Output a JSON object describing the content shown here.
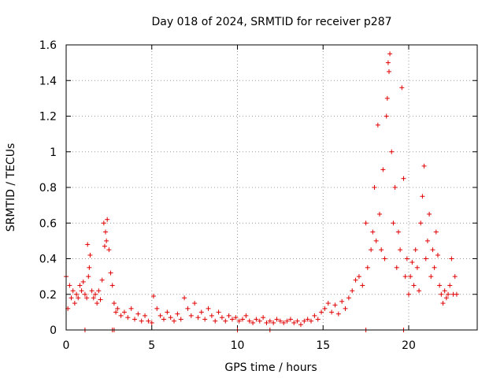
{
  "chart_data": {
    "type": "scatter",
    "title": "Day 018 of 2024, SRMTID for receiver p287",
    "xlabel": "GPS time / hours",
    "ylabel": "SRMTID / TECUs",
    "xlim": [
      0,
      24
    ],
    "ylim": [
      0,
      1.6
    ],
    "xticks": [
      0,
      5,
      10,
      15,
      20
    ],
    "yticks": [
      0,
      0.2,
      0.4,
      0.6,
      0.8,
      1,
      1.2,
      1.4,
      1.6
    ],
    "ytick_labels": [
      "0",
      "0.2",
      "0.4",
      "0.6",
      "0.8",
      "1",
      "1.2",
      "1.4",
      "1.6"
    ],
    "grid": true,
    "marker": "+",
    "series": [
      {
        "name": "SRMTID",
        "color": "#e00000",
        "x": [
          0.0,
          0.1,
          0.2,
          0.3,
          0.4,
          0.5,
          0.6,
          0.7,
          0.8,
          0.9,
          1.0,
          1.1,
          1.2,
          1.25,
          1.3,
          1.35,
          1.4,
          1.5,
          1.6,
          1.7,
          1.8,
          1.9,
          2.0,
          2.1,
          2.2,
          2.25,
          2.3,
          2.35,
          2.4,
          2.5,
          2.6,
          2.7,
          2.8,
          2.9,
          3.0,
          3.2,
          3.4,
          3.6,
          3.8,
          4.0,
          4.2,
          4.4,
          4.6,
          4.8,
          5.0,
          5.1,
          5.3,
          5.5,
          5.7,
          5.9,
          6.1,
          6.3,
          6.5,
          6.7,
          6.9,
          7.1,
          7.3,
          7.5,
          7.7,
          7.9,
          8.1,
          8.3,
          8.5,
          8.7,
          8.9,
          9.1,
          9.3,
          9.5,
          9.7,
          9.9,
          10.1,
          10.3,
          10.5,
          10.7,
          10.9,
          11.1,
          11.3,
          11.5,
          11.7,
          11.9,
          12.1,
          12.3,
          12.5,
          12.7,
          12.9,
          13.1,
          13.3,
          13.5,
          13.7,
          13.9,
          14.1,
          14.3,
          14.5,
          14.7,
          14.9,
          15.1,
          15.3,
          15.5,
          15.7,
          15.9,
          16.1,
          16.3,
          16.5,
          16.7,
          16.9,
          17.1,
          17.3,
          17.5,
          17.6,
          17.8,
          17.9,
          18.0,
          18.1,
          18.2,
          18.3,
          18.4,
          18.5,
          18.6,
          18.7,
          18.75,
          18.8,
          18.85,
          18.9,
          19.0,
          19.1,
          19.2,
          19.3,
          19.4,
          19.5,
          19.6,
          19.7,
          19.8,
          19.9,
          20.0,
          20.1,
          20.2,
          20.3,
          20.4,
          20.5,
          20.6,
          20.7,
          20.8,
          20.9,
          21.0,
          21.1,
          21.2,
          21.3,
          21.4,
          21.5,
          21.6,
          21.7,
          21.8,
          21.9,
          22.0,
          22.1,
          22.2,
          22.3,
          22.4,
          22.5,
          22.6,
          22.7,
          22.8,
          1.1,
          2.7,
          2.8,
          10.0,
          11.9,
          17.5,
          19.7
        ],
        "y": [
          0.3,
          0.12,
          0.25,
          0.18,
          0.22,
          0.15,
          0.2,
          0.18,
          0.25,
          0.22,
          0.27,
          0.2,
          0.18,
          0.48,
          0.3,
          0.35,
          0.42,
          0.22,
          0.18,
          0.2,
          0.15,
          0.22,
          0.17,
          0.28,
          0.6,
          0.47,
          0.55,
          0.5,
          0.62,
          0.45,
          0.32,
          0.25,
          0.15,
          0.1,
          0.12,
          0.08,
          0.1,
          0.07,
          0.12,
          0.06,
          0.09,
          0.05,
          0.08,
          0.05,
          0.04,
          0.19,
          0.12,
          0.08,
          0.06,
          0.1,
          0.07,
          0.05,
          0.09,
          0.06,
          0.18,
          0.12,
          0.08,
          0.15,
          0.07,
          0.1,
          0.06,
          0.12,
          0.08,
          0.05,
          0.1,
          0.07,
          0.05,
          0.08,
          0.06,
          0.07,
          0.05,
          0.06,
          0.08,
          0.05,
          0.04,
          0.06,
          0.05,
          0.07,
          0.04,
          0.05,
          0.04,
          0.06,
          0.05,
          0.04,
          0.05,
          0.06,
          0.04,
          0.05,
          0.03,
          0.05,
          0.06,
          0.05,
          0.08,
          0.06,
          0.1,
          0.12,
          0.15,
          0.1,
          0.14,
          0.09,
          0.16,
          0.12,
          0.18,
          0.22,
          0.28,
          0.3,
          0.25,
          0.6,
          0.35,
          0.45,
          0.55,
          0.8,
          0.5,
          1.15,
          0.65,
          0.45,
          0.9,
          0.4,
          1.2,
          1.3,
          1.5,
          1.45,
          1.55,
          1.0,
          0.6,
          0.8,
          0.35,
          0.55,
          0.45,
          1.36,
          0.85,
          0.3,
          0.4,
          0.2,
          0.3,
          0.38,
          0.25,
          0.45,
          0.35,
          0.22,
          0.6,
          0.75,
          0.92,
          0.4,
          0.5,
          0.65,
          0.3,
          0.45,
          0.35,
          0.55,
          0.42,
          0.25,
          0.2,
          0.15,
          0.22,
          0.18,
          0.2,
          0.25,
          0.4,
          0.2,
          0.3,
          0.2,
          0.0,
          0.0,
          0.0,
          0.0,
          0.0,
          0.0,
          0.0
        ]
      }
    ]
  }
}
